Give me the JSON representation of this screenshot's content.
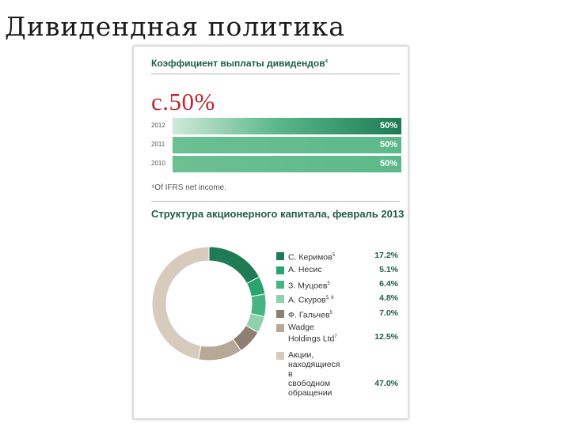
{
  "slide": {
    "title": "Дивидендная политика"
  },
  "dividend_section": {
    "title": "Коэффициент выплаты дивидендов",
    "title_footnote_mark": "4",
    "headline_value": "c.50%",
    "footnote": "⁴Of IFRS net income."
  },
  "shareholder_section": {
    "title": "Структура акционерного капитала, февраль 2013"
  },
  "chart_data": [
    {
      "type": "bar",
      "orientation": "horizontal",
      "title": "Коэффициент выплаты дивидендов",
      "categories": [
        "2012",
        "2011",
        "2010"
      ],
      "values": [
        50,
        50,
        50
      ],
      "value_labels": [
        "50%",
        "50%",
        "50%"
      ],
      "xlim": [
        0,
        50
      ],
      "colors": [
        "#1e8a5b",
        "#5cb88a",
        "#5cb88a"
      ]
    },
    {
      "type": "pie",
      "style": "donut",
      "title": "Структура акционерного капитала, февраль 2013",
      "labels": [
        "С. Керимов",
        "А. Несис",
        "З. Муцоев",
        "А. Скуров",
        "Ф. Гальчев",
        "Wadge Holdings Ltd",
        "Акции, находящиеся в свободном обращении"
      ],
      "label_marks": [
        "5",
        "",
        "5",
        "5, 6",
        "5",
        "7",
        ""
      ],
      "value_labels": [
        "17.2%",
        "5.1%",
        "6.4%",
        "4.8%",
        "7.0%",
        "12.5%",
        "47.0%"
      ],
      "values": [
        17.2,
        5.1,
        6.4,
        4.8,
        7.0,
        12.5,
        47.0
      ],
      "colors": [
        "#1e7b55",
        "#2aa46e",
        "#48b383",
        "#8fd0ae",
        "#8d7f72",
        "#b8a896",
        "#d8cbbd"
      ],
      "legend_position": "right"
    }
  ]
}
